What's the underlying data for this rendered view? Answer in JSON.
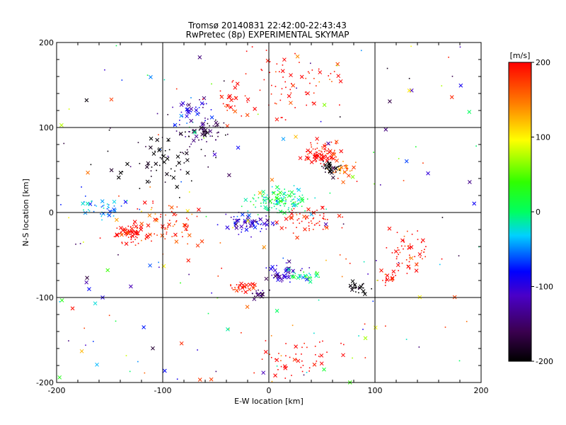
{
  "chart_data": {
    "type": "scatter",
    "title": "Tromsø 20140831 22:42:00-22:43:43",
    "subtitle": "RwPretec (8p) EXPERIMENTAL SKYMAP",
    "xlabel": "E-W location [km]",
    "ylabel": "N-S location [km]",
    "xlim": [
      -200,
      200
    ],
    "ylim": [
      -200,
      200
    ],
    "xticks": [
      "-200",
      "-100",
      "0",
      "100",
      "200"
    ],
    "yticks": [
      "-200",
      "-100",
      "0",
      "100",
      "200"
    ],
    "grid": true,
    "colorbar": {
      "label": "[m/s]",
      "range": [
        -200,
        200
      ],
      "ticks": [
        "-200",
        "-100",
        "0",
        "100",
        "200"
      ],
      "colormap": "rainbow: black-violet-blue-cyan-green-yellow-red"
    },
    "markers": [
      "dot",
      "x"
    ],
    "clusters": [
      {
        "x": 50,
        "y": 70,
        "spread": [
          12,
          10
        ],
        "velocity": 200,
        "n": 90
      },
      {
        "x": 70,
        "y": 50,
        "spread": [
          10,
          10
        ],
        "velocity": 150,
        "n": 30
      },
      {
        "x": 60,
        "y": 52,
        "spread": [
          7,
          6
        ],
        "velocity": -200,
        "n": 30
      },
      {
        "x": 10,
        "y": 14,
        "spread": [
          22,
          12
        ],
        "velocity": 0,
        "n": 140
      },
      {
        "x": -20,
        "y": -12,
        "spread": [
          18,
          10
        ],
        "velocity": -100,
        "n": 70
      },
      {
        "x": 40,
        "y": -10,
        "spread": [
          25,
          15
        ],
        "velocity": 200,
        "n": 60
      },
      {
        "x": 15,
        "y": -72,
        "spread": [
          12,
          8
        ],
        "velocity": -110,
        "n": 50
      },
      {
        "x": 35,
        "y": -75,
        "spread": [
          10,
          6
        ],
        "velocity": 10,
        "n": 25
      },
      {
        "x": -25,
        "y": -88,
        "spread": [
          10,
          5
        ],
        "velocity": 200,
        "n": 40
      },
      {
        "x": -10,
        "y": -95,
        "spread": [
          6,
          4
        ],
        "velocity": -160,
        "n": 20
      },
      {
        "x": 82,
        "y": -88,
        "spread": [
          8,
          5
        ],
        "velocity": -200,
        "n": 30
      },
      {
        "x": -130,
        "y": -25,
        "spread": [
          12,
          10
        ],
        "velocity": 200,
        "n": 80
      },
      {
        "x": -155,
        "y": 5,
        "spread": [
          20,
          8
        ],
        "velocity": -40,
        "n": 45
      },
      {
        "x": -95,
        "y": -15,
        "spread": [
          25,
          20
        ],
        "velocity": 180,
        "n": 70
      },
      {
        "x": -60,
        "y": 95,
        "spread": [
          20,
          10
        ],
        "velocity": -170,
        "n": 60
      },
      {
        "x": -70,
        "y": 120,
        "spread": [
          20,
          15
        ],
        "velocity": -100,
        "n": 40
      },
      {
        "x": -35,
        "y": 130,
        "spread": [
          15,
          15
        ],
        "velocity": 200,
        "n": 30
      },
      {
        "x": -100,
        "y": 60,
        "spread": [
          40,
          25
        ],
        "velocity": -200,
        "n": 70
      },
      {
        "x": 130,
        "y": -50,
        "spread": [
          20,
          25
        ],
        "velocity": 200,
        "n": 60
      },
      {
        "x": 112,
        "y": -78,
        "spread": [
          6,
          5
        ],
        "velocity": 200,
        "n": 15
      },
      {
        "x": 20,
        "y": 150,
        "spread": [
          40,
          30
        ],
        "velocity": 200,
        "n": 70
      },
      {
        "x": 30,
        "y": -170,
        "spread": [
          30,
          25
        ],
        "velocity": 200,
        "n": 50
      },
      {
        "x": 0,
        "y": 0,
        "spread": [
          200,
          200
        ],
        "velocity": 0,
        "velocitySpread": 400,
        "n": 200
      }
    ]
  }
}
